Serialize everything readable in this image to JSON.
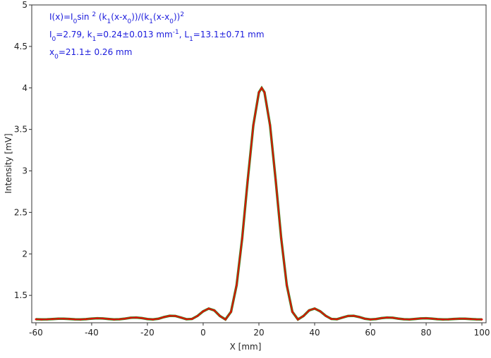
{
  "chart_data": {
    "type": "line",
    "x_label": "X [mm]",
    "y_label": "Intensity [mV]",
    "xlim": [
      -61.5,
      101.5
    ],
    "ylim": [
      1.17,
      5
    ],
    "xticks": [
      -60,
      -40,
      -20,
      0,
      20,
      40,
      60,
      80,
      100
    ],
    "yticks": [
      1.5,
      2,
      2.5,
      3,
      3.5,
      4,
      4.5,
      5
    ],
    "annotation_color": "#1a1adc",
    "annotations": [
      [
        {
          "text": "I(x)=I"
        },
        {
          "text": "0",
          "shift": "sub"
        },
        {
          "text": "sin "
        },
        {
          "text": "2",
          "shift": "super"
        },
        {
          "text": " (k"
        },
        {
          "text": "1",
          "shift": "sub"
        },
        {
          "text": "(x-x"
        },
        {
          "text": "0",
          "shift": "sub"
        },
        {
          "text": "))/(k"
        },
        {
          "text": "1",
          "shift": "sub"
        },
        {
          "text": "(x-x"
        },
        {
          "text": "0",
          "shift": "sub"
        },
        {
          "text": "))"
        },
        {
          "text": "2",
          "shift": "super"
        }
      ],
      [
        {
          "text": "I"
        },
        {
          "text": "0",
          "shift": "sub"
        },
        {
          "text": "=2.79,  k"
        },
        {
          "text": "1",
          "shift": "sub"
        },
        {
          "text": "=0.24±0.013 mm"
        },
        {
          "text": "-1",
          "shift": "super"
        },
        {
          "text": ",   L"
        },
        {
          "text": "1",
          "shift": "sub"
        },
        {
          "text": "=13.1±0.71 mm"
        }
      ],
      [
        {
          "text": "x"
        },
        {
          "text": "0",
          "shift": "sub"
        },
        {
          "text": "=21.1±  0.26 mm"
        }
      ]
    ],
    "fit_color": "#3a8a2a",
    "x": [
      -60,
      -58,
      -56,
      -54,
      -52,
      -50,
      -48,
      -46,
      -44,
      -42,
      -40,
      -38,
      -36,
      -34,
      -32,
      -30,
      -28,
      -26,
      -24,
      -22,
      -20,
      -18,
      -16,
      -14,
      -12,
      -10,
      -8,
      -6,
      -4,
      -2,
      0,
      2,
      4,
      6,
      8,
      10,
      12,
      14,
      16,
      18,
      20,
      21,
      22,
      24,
      26,
      28,
      30,
      32,
      34,
      36,
      38,
      40,
      42,
      44,
      46,
      48,
      50,
      52,
      54,
      56,
      58,
      60,
      62,
      64,
      66,
      68,
      70,
      72,
      74,
      76,
      78,
      80,
      82,
      84,
      86,
      88,
      90,
      92,
      94,
      96,
      98,
      100
    ],
    "series": [
      {
        "color": "#dd1100",
        "values": [
          1.212,
          1.21,
          1.211,
          1.215,
          1.219,
          1.219,
          1.216,
          1.211,
          1.21,
          1.214,
          1.22,
          1.224,
          1.222,
          1.216,
          1.21,
          1.212,
          1.22,
          1.23,
          1.233,
          1.226,
          1.215,
          1.21,
          1.219,
          1.239,
          1.254,
          1.252,
          1.233,
          1.213,
          1.216,
          1.253,
          1.308,
          1.341,
          1.319,
          1.252,
          1.21,
          1.302,
          1.623,
          2.187,
          2.894,
          3.55,
          3.947,
          4.0,
          3.947,
          3.55,
          2.894,
          2.187,
          1.623,
          1.302,
          1.21,
          1.252,
          1.319,
          1.341,
          1.308,
          1.253,
          1.216,
          1.213,
          1.233,
          1.252,
          1.254,
          1.239,
          1.219,
          1.21,
          1.215,
          1.226,
          1.233,
          1.23,
          1.22,
          1.212,
          1.21,
          1.216,
          1.222,
          1.224,
          1.22,
          1.214,
          1.21,
          1.211,
          1.216,
          1.219,
          1.219,
          1.215,
          1.211,
          1.21
        ]
      }
    ]
  }
}
